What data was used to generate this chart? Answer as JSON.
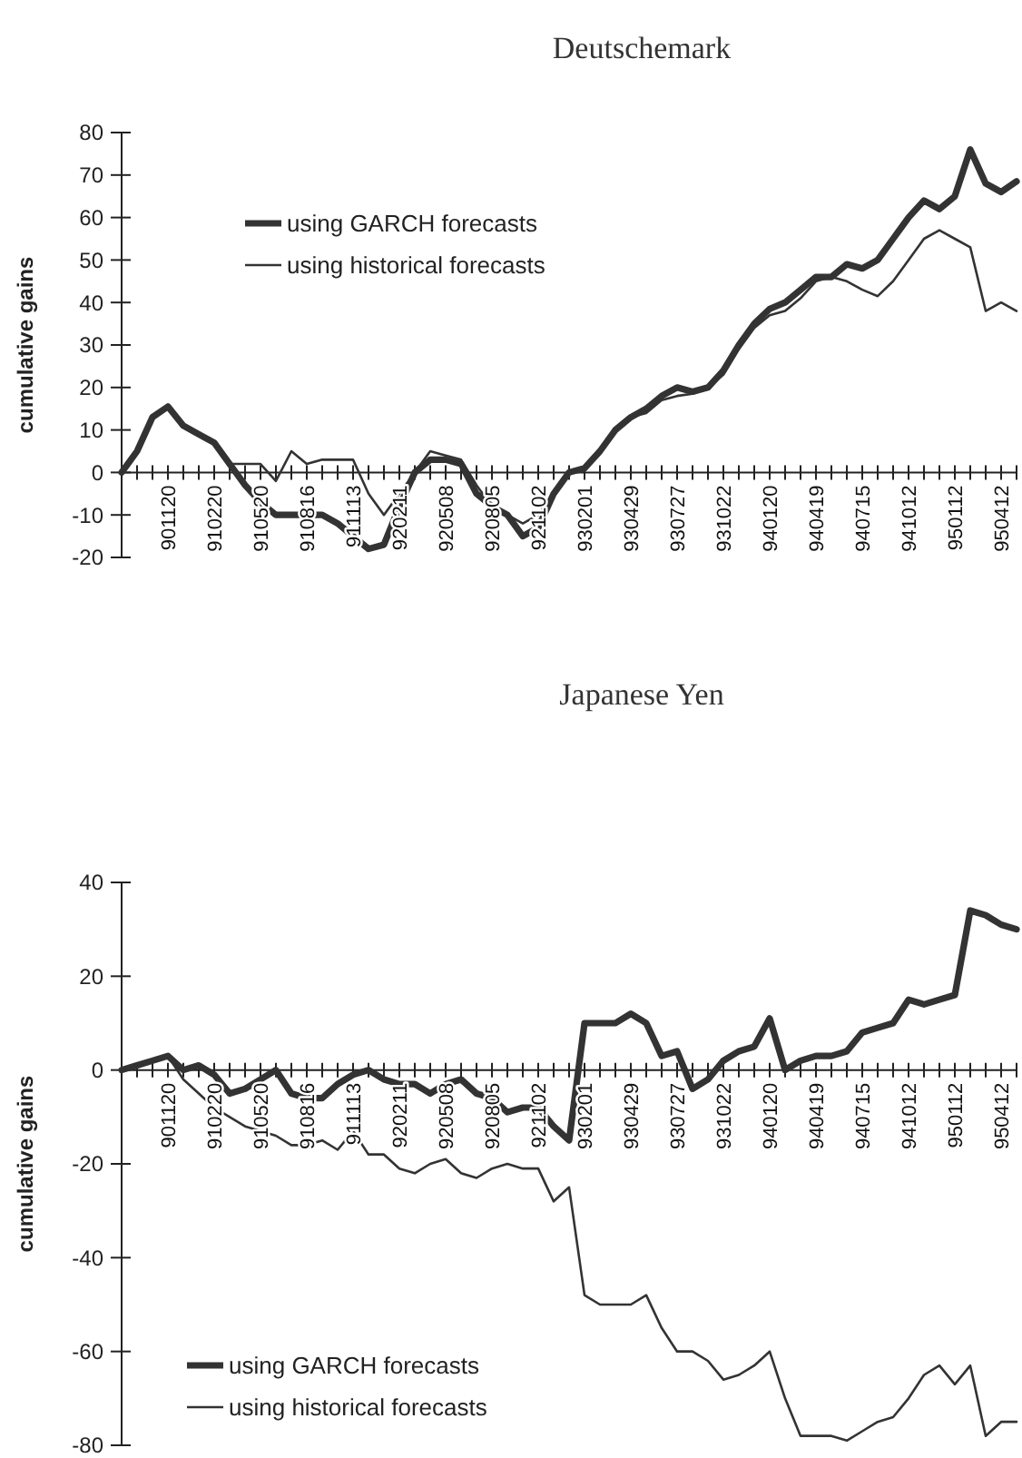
{
  "chart_data": [
    {
      "type": "line",
      "title": "Deutschemark",
      "ylabel": "cumulative gains",
      "categories": [
        null,
        null,
        null,
        "901120",
        null,
        null,
        "910220",
        null,
        null,
        "910520",
        null,
        null,
        "910816",
        null,
        null,
        "911113",
        null,
        null,
        "920211",
        null,
        null,
        "920508",
        null,
        null,
        "920805",
        null,
        null,
        "921102",
        null,
        null,
        "930201",
        null,
        null,
        "930429",
        null,
        null,
        "930727",
        null,
        null,
        "931022",
        null,
        null,
        "940120",
        null,
        null,
        "940419",
        null,
        null,
        "940715",
        null,
        null,
        "941012",
        null,
        null,
        "950112",
        null,
        null,
        "950412",
        null
      ],
      "series": [
        {
          "name": "using GARCH forecasts",
          "color": "#333333",
          "values": [
            0,
            5,
            13,
            15.5,
            11,
            9,
            7,
            2,
            -3,
            -7,
            -10,
            -10,
            -10,
            -10,
            -12,
            -15,
            -18,
            -17,
            -8,
            0,
            3,
            3,
            2,
            -5,
            -8,
            -10,
            -15,
            -13,
            -5,
            0,
            1,
            5,
            10,
            13,
            15,
            18,
            20,
            19,
            20,
            24,
            30,
            35,
            38.5,
            40,
            43,
            46,
            46,
            49,
            48,
            50,
            55,
            60,
            64,
            62,
            65,
            76,
            68,
            66,
            68.5
          ]
        },
        {
          "name": "using historical forecasts",
          "color": "#333333",
          "values": [
            0,
            5,
            13,
            15.5,
            11,
            9,
            7,
            2,
            2,
            2,
            -2,
            5,
            2,
            3,
            3,
            3,
            -5,
            -10,
            -5,
            0,
            5,
            4,
            3,
            -3,
            -8,
            -10,
            -12,
            -10,
            -5,
            0,
            1,
            5,
            10,
            13,
            14,
            17,
            18,
            18.5,
            20,
            23,
            29,
            34,
            37,
            38,
            41,
            45,
            46,
            45,
            43,
            41.5,
            45,
            50,
            55,
            57,
            55,
            53,
            38,
            40,
            38
          ]
        }
      ],
      "ylim": [
        -20,
        80
      ],
      "yticks": [
        -20,
        -10,
        0,
        10,
        20,
        30,
        40,
        50,
        60,
        70,
        80
      ],
      "grid": false,
      "legend": "top left"
    },
    {
      "type": "line",
      "title": "Japanese Yen",
      "ylabel": "cumulative gains",
      "categories": [
        null,
        null,
        null,
        "901120",
        null,
        null,
        "910220",
        null,
        null,
        "910520",
        null,
        null,
        "910816",
        null,
        null,
        "911113",
        null,
        null,
        "920211",
        null,
        null,
        "920508",
        null,
        null,
        "920805",
        null,
        null,
        "921102",
        null,
        null,
        "930201",
        null,
        null,
        "930429",
        null,
        null,
        "930727",
        null,
        null,
        "931022",
        null,
        null,
        "940120",
        null,
        null,
        "940419",
        null,
        null,
        "940715",
        null,
        null,
        "941012",
        null,
        null,
        "950112",
        null,
        null,
        "950412",
        null
      ],
      "series": [
        {
          "name": "using GARCH forecasts",
          "color": "#333333",
          "values": [
            0,
            1,
            2,
            3,
            0,
            1,
            -1,
            -5,
            -4,
            -2,
            0,
            -5,
            -6,
            -6,
            -3,
            -1,
            0,
            -2,
            -3,
            -3,
            -5,
            -3,
            -2,
            -5,
            -6,
            -9,
            -8,
            -8,
            -12,
            -15,
            10,
            10,
            10,
            12,
            10,
            3,
            4,
            -4,
            -2,
            2,
            4,
            5,
            11,
            0,
            2,
            3,
            3,
            4,
            8,
            9,
            10,
            15,
            14,
            15,
            16,
            34,
            33,
            31,
            30
          ]
        },
        {
          "name": "using historical forecasts",
          "color": "#333333",
          "values": [
            0,
            1,
            2,
            3,
            -2,
            -5,
            -8,
            -10,
            -12,
            -13,
            -14,
            -16,
            -16,
            -15,
            -17,
            -13,
            -18,
            -18,
            -21,
            -22,
            -20,
            -19,
            -22,
            -23,
            -21,
            -20,
            -21,
            -21,
            -28,
            -25,
            -48,
            -50,
            -50,
            -50,
            -48,
            -55,
            -60,
            -60,
            -62,
            -66,
            -65,
            -63,
            -60,
            -70,
            -78,
            -78,
            -78,
            -79,
            -77,
            -75,
            -74,
            -70,
            -65,
            -63,
            -67,
            -63,
            -78,
            -75,
            -75
          ]
        }
      ],
      "ylim": [
        -80,
        40
      ],
      "yticks": [
        -80,
        -60,
        -40,
        -20,
        0,
        20,
        40
      ],
      "grid": false,
      "legend": "bottom left"
    }
  ]
}
